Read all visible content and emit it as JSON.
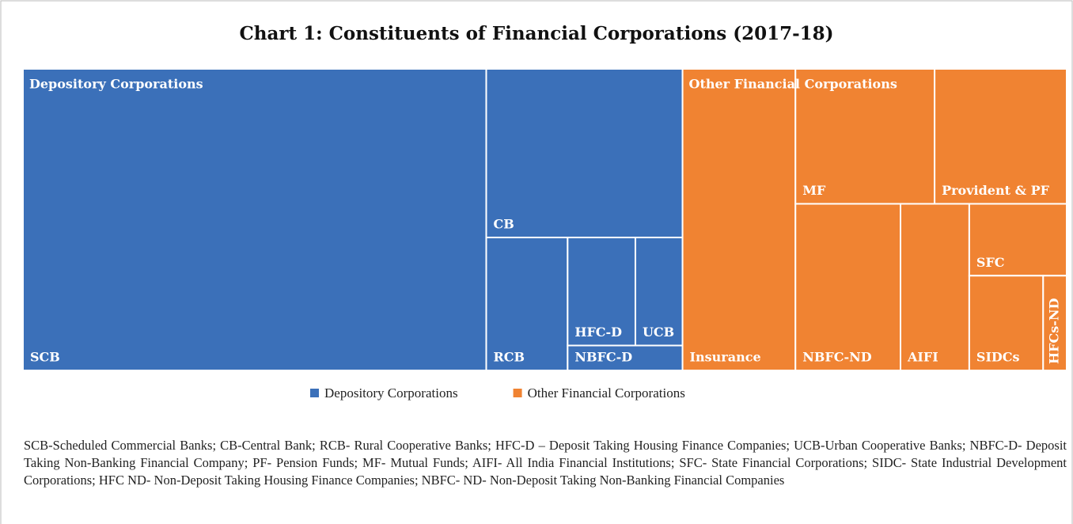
{
  "chart_data": {
    "type": "treemap",
    "title": "Chart 1: Constituents of Financial Corporations (2017-18)",
    "series": [
      {
        "name": "Depository Corporations",
        "color": "#3b70b9",
        "categories": [
          "SCB",
          "CB",
          "RCB",
          "HFC-D",
          "UCB",
          "NBFC-D"
        ],
        "values": [
          43.9,
          10.4,
          3.4,
          2.3,
          1.6,
          0.9
        ]
      },
      {
        "name": "Other Financial Corporations",
        "color": "#f08332",
        "categories": [
          "Insurance",
          "MF",
          "Provident & PF",
          "NBFC-ND",
          "AIFI",
          "SFC",
          "SIDCs",
          "HFCs-ND"
        ],
        "values": [
          10.7,
          5.9,
          5.6,
          5.5,
          3.6,
          2.2,
          2.2,
          0.7
        ]
      }
    ],
    "footnote": "SCB-Scheduled Commercial Banks;  CB-Central Bank; RCB- Rural Cooperative Banks; HFC-D – Deposit Taking Housing Finance Companies; UCB-Urban Cooperative Banks; NBFC-D- Deposit Taking Non-Banking Financial Company; PF- Pension Funds; MF- Mutual Funds; AIFI- All India Financial Institutions; SFC- State Financial Corporations; SIDC- State Industrial Development Corporations; HFC ND- Non-Deposit Taking Housing Finance Companies; NBFC- ND- Non-Deposit Taking Non-Banking Financial Companies"
  }
}
